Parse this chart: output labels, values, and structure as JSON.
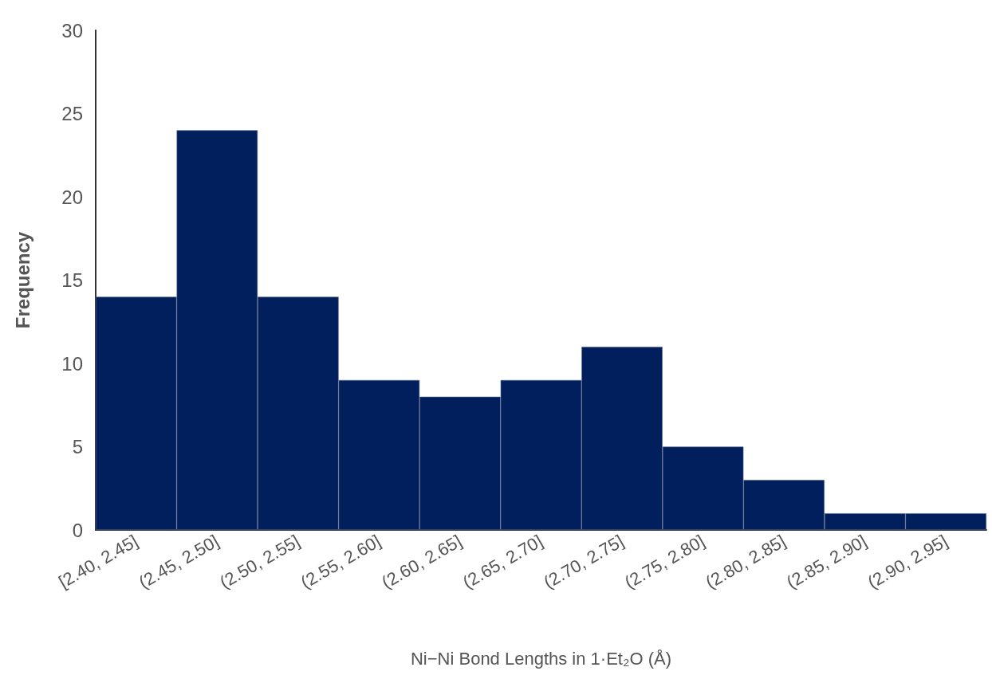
{
  "chart_data": {
    "type": "bar",
    "xlabel": "Ni−Ni Bond Lengths in 1·Et₂O (Å)",
    "ylabel": "Frequency",
    "categories": [
      "[2.40, 2.45]",
      "(2.45, 2.50]",
      "(2.50, 2.55]",
      "(2.55, 2.60]",
      "(2.60, 2.65]",
      "(2.65, 2.70]",
      "(2.70, 2.75]",
      "(2.75, 2.80]",
      "(2.80, 2.85]",
      "(2.85, 2.90]",
      "(2.90, 2.95]"
    ],
    "values": [
      14,
      24,
      14,
      9,
      8,
      9,
      11,
      5,
      3,
      1,
      1
    ],
    "color": "#001f5c",
    "ylim": [
      0,
      30
    ],
    "yticks": [
      0,
      5,
      10,
      15,
      20,
      25,
      30
    ],
    "grid": false
  }
}
